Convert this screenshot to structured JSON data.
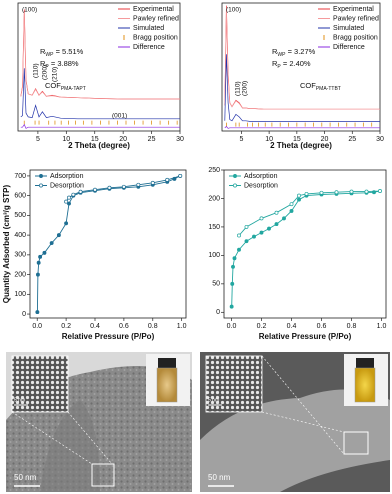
{
  "chart_data": [
    {
      "type": "line",
      "xlabel": "2 Theta (degree)",
      "xlim": [
        1.5,
        30
      ],
      "xticks": [
        5,
        10,
        15,
        20,
        25,
        30
      ],
      "ylim": [
        0,
        100
      ],
      "legend": "upper right",
      "x": [
        2,
        2.3,
        2.6,
        2.9,
        3.3,
        4,
        4.6,
        5.2,
        5.8,
        6.5,
        7.5,
        9,
        12,
        15,
        20,
        25,
        30
      ],
      "series": [
        {
          "name": "Experimental",
          "color": "#e8383d",
          "values": [
            27,
            35,
            95,
            40,
            29,
            28,
            33,
            28,
            31,
            27,
            28,
            26.5,
            26,
            25.5,
            25,
            25,
            25
          ]
        },
        {
          "name": "Pawley refined",
          "color": "#f59a9c",
          "values": [
            27,
            34,
            93,
            39,
            29,
            28,
            32.5,
            28,
            30.5,
            27,
            27.5,
            26.5,
            26,
            25.5,
            25,
            25,
            25
          ]
        },
        {
          "name": "Simulated",
          "color": "#2233aa",
          "values": [
            11,
            12,
            49,
            14,
            11,
            10.5,
            20,
            11,
            15,
            10.5,
            11.5,
            10,
            9.5,
            9.5,
            9.5,
            9.5,
            9.5
          ]
        },
        {
          "name": "Bragg position",
          "color": "#e0901a",
          "style": "ticks",
          "x": [
            2.6,
            4.5,
            5.2,
            6.9,
            8,
            9.1,
            10.4,
            11.6,
            13,
            14.5,
            16,
            17.5,
            19,
            20.5,
            22,
            23.5,
            25,
            26.5,
            28,
            29.5
          ],
          "values": [
            6.5,
            6.5,
            6.5,
            6.5,
            6.5,
            6.5,
            6.5,
            6.5,
            6.5,
            6.5,
            6.5,
            6.5,
            6.5,
            6.5,
            6.5,
            6.5,
            6.5,
            6.5,
            6.5,
            6.5
          ]
        },
        {
          "name": "Difference",
          "color": "#8a2be2",
          "values": [
            3,
            3,
            5,
            2,
            3,
            3,
            3,
            3,
            3,
            3,
            3,
            3,
            3,
            3,
            3,
            3,
            3
          ]
        }
      ],
      "annotations": [
        "(100)",
        "(110)",
        "(200)",
        "(210)",
        "(001)",
        {
          "text": "R",
          "sub": "WP",
          "rest": " = 5.51%"
        },
        {
          "text": "R",
          "sub": "P",
          "rest": " = 3.88%"
        },
        {
          "text": "COF",
          "sub": "PMA-TAPT"
        }
      ]
    },
    {
      "type": "line",
      "xlabel": "2 Theta (degree)",
      "xlim": [
        1.5,
        30
      ],
      "xticks": [
        5,
        10,
        15,
        20,
        25,
        30
      ],
      "ylim": [
        0,
        100
      ],
      "legend": "upper right",
      "x": [
        2,
        2.3,
        2.6,
        2.9,
        3.3,
        4,
        4.6,
        5.2,
        5.8,
        6.5,
        7.5,
        9,
        12,
        15,
        20,
        25,
        30
      ],
      "series": [
        {
          "name": "Experimental",
          "color": "#e8383d",
          "values": [
            20,
            98,
            45,
            22,
            19,
            24,
            22,
            18,
            18,
            17.5,
            17.5,
            17,
            17,
            17,
            17,
            17,
            17
          ]
        },
        {
          "name": "Pawley refined",
          "color": "#f59a9c",
          "values": [
            20,
            96,
            44,
            22,
            19,
            23.5,
            21.5,
            18,
            18,
            17.5,
            17.5,
            17,
            17,
            17,
            17,
            17,
            17
          ]
        },
        {
          "name": "Simulated",
          "color": "#2233aa",
          "values": [
            8,
            60,
            22,
            9,
            8,
            13,
            11,
            8,
            8,
            7.5,
            7.5,
            7.5,
            7.5,
            7.5,
            7.5,
            7.5,
            7.5
          ]
        },
        {
          "name": "Bragg position",
          "color": "#e0901a",
          "style": "ticks",
          "x": [
            2.3,
            4,
            4.6,
            6.1,
            7,
            8.1,
            9.3,
            10.5,
            12,
            13.5,
            15,
            16.5,
            18,
            19.5,
            21,
            22.5,
            24,
            25.5,
            27,
            28.5
          ],
          "values": [
            5,
            5,
            5,
            5,
            5,
            5,
            5,
            5,
            5,
            5,
            5,
            5,
            5,
            5,
            5,
            5,
            5,
            5,
            5,
            5
          ]
        },
        {
          "name": "Difference",
          "color": "#8a2be2",
          "values": [
            2.5,
            3.5,
            2,
            2.5,
            2.5,
            2.5,
            2.5,
            2.5,
            2.5,
            2.5,
            2.5,
            2.5,
            2.5,
            2.5,
            2.5,
            2.5,
            2.5
          ]
        }
      ],
      "annotations": [
        "(100)",
        "(110)",
        "(200)",
        {
          "text": "R",
          "sub": "WP",
          "rest": " = 3.27%"
        },
        {
          "text": "R",
          "sub": "P",
          "rest": " = 2.40%"
        },
        {
          "text": "COF",
          "sub": "PMA-TTBT"
        }
      ]
    },
    {
      "type": "line",
      "xlabel": "Relative Pressure (P/Po)",
      "ylabel": "Quantity Adsorbed (cm³/g STP)",
      "xlim": [
        -0.05,
        1.03
      ],
      "xticks": [
        {
          "value": 0,
          "label": "0.0"
        },
        0.2,
        0.4,
        0.6,
        0.8,
        {
          "value": 1,
          "label": "1.0"
        }
      ],
      "ylim": [
        -20,
        730
      ],
      "yticks": [
        0,
        100,
        200,
        300,
        400,
        500,
        600,
        700
      ],
      "legend": "upper left",
      "series": [
        {
          "name": "Adsorption",
          "color": "#1f6f93",
          "marker": "filled",
          "x": [
            0.001,
            0.005,
            0.01,
            0.02,
            0.05,
            0.1,
            0.15,
            0.2,
            0.22,
            0.25,
            0.3,
            0.4,
            0.5,
            0.6,
            0.7,
            0.8,
            0.9,
            0.95,
            0.99
          ],
          "values": [
            10,
            200,
            260,
            290,
            310,
            360,
            400,
            460,
            560,
            600,
            615,
            625,
            635,
            640,
            645,
            655,
            670,
            685,
            700
          ]
        },
        {
          "name": "Desorption",
          "color": "#1f6f93",
          "marker": "open",
          "x": [
            0.99,
            0.9,
            0.8,
            0.7,
            0.6,
            0.5,
            0.4,
            0.3,
            0.25,
            0.22,
            0.2
          ],
          "values": [
            700,
            680,
            665,
            655,
            645,
            640,
            630,
            620,
            605,
            590,
            570
          ]
        }
      ]
    },
    {
      "type": "line",
      "xlabel": "Relative Pressure (P/Po)",
      "xlim": [
        -0.05,
        1.03
      ],
      "xticks": [
        {
          "value": 0,
          "label": "0.0"
        },
        0.2,
        0.4,
        0.6,
        0.8,
        {
          "value": 1,
          "label": "1.0"
        }
      ],
      "ylim": [
        -10,
        250
      ],
      "yticks": [
        0,
        50,
        100,
        150,
        200,
        250
      ],
      "legend": "upper left",
      "series": [
        {
          "name": "Adsorption",
          "color": "#22a7a0",
          "marker": "filled",
          "x": [
            0.001,
            0.005,
            0.01,
            0.02,
            0.05,
            0.1,
            0.15,
            0.2,
            0.25,
            0.3,
            0.35,
            0.4,
            0.45,
            0.5,
            0.6,
            0.7,
            0.8,
            0.9,
            0.95,
            0.99
          ],
          "values": [
            10,
            50,
            80,
            95,
            110,
            125,
            133,
            140,
            147,
            155,
            165,
            178,
            198,
            205,
            207,
            208,
            209,
            210,
            211,
            213
          ]
        },
        {
          "name": "Desorption",
          "color": "#22a7a0",
          "marker": "open",
          "x": [
            0.99,
            0.9,
            0.8,
            0.7,
            0.6,
            0.5,
            0.45,
            0.4,
            0.3,
            0.2,
            0.1,
            0.05
          ],
          "values": [
            213,
            212,
            212,
            211,
            210,
            208,
            205,
            190,
            175,
            165,
            150,
            135
          ]
        }
      ]
    }
  ],
  "micrographs": [
    {
      "inset_scale": "5 nm",
      "scale": "50 nm"
    },
    {
      "inset_scale": "5 nm",
      "scale": "50 nm"
    }
  ]
}
